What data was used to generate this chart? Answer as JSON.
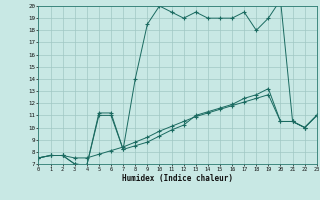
{
  "xlabel": "Humidex (Indice chaleur)",
  "bg_color": "#c8e8e4",
  "grid_color": "#a0c8c4",
  "line_color": "#1a6a60",
  "xlim": [
    0,
    23
  ],
  "ylim": [
    7,
    20
  ],
  "xticks": [
    0,
    1,
    2,
    3,
    4,
    5,
    6,
    7,
    8,
    9,
    10,
    11,
    12,
    13,
    14,
    15,
    16,
    17,
    18,
    19,
    20,
    21,
    22,
    23
  ],
  "yticks": [
    7,
    8,
    9,
    10,
    11,
    12,
    13,
    14,
    15,
    16,
    17,
    18,
    19,
    20
  ],
  "line1_x": [
    0,
    1,
    2,
    3,
    4,
    5,
    6,
    7,
    8,
    9,
    10,
    11,
    12,
    13,
    14,
    15,
    16,
    17,
    18,
    19,
    20,
    21,
    22,
    23
  ],
  "line1_y": [
    7.5,
    7.7,
    7.7,
    7.5,
    7.5,
    7.8,
    8.1,
    8.4,
    8.8,
    9.2,
    9.7,
    10.1,
    10.5,
    10.9,
    11.2,
    11.5,
    11.8,
    12.1,
    12.4,
    12.7,
    10.5,
    10.5,
    10.0,
    11.0
  ],
  "line2_x": [
    0,
    1,
    2,
    3,
    4,
    5,
    6,
    7,
    8,
    9,
    10,
    11,
    12,
    13,
    14,
    15,
    16,
    17,
    18,
    19,
    20,
    21,
    22,
    23
  ],
  "line2_y": [
    7.5,
    7.7,
    7.7,
    7.0,
    6.9,
    11.0,
    11.0,
    8.2,
    8.5,
    8.8,
    9.3,
    9.8,
    10.2,
    11.0,
    11.3,
    11.6,
    11.9,
    12.4,
    12.7,
    13.2,
    10.5,
    10.5,
    10.0,
    11.0
  ],
  "line3_x": [
    0,
    1,
    2,
    3,
    4,
    5,
    6,
    7,
    8,
    9,
    10,
    11,
    12,
    13,
    14,
    15,
    16,
    17,
    18,
    19,
    20,
    21,
    22,
    23
  ],
  "line3_y": [
    7.5,
    7.7,
    7.7,
    7.0,
    6.9,
    11.2,
    11.2,
    8.2,
    14.0,
    18.5,
    20.0,
    19.5,
    19.0,
    19.5,
    19.0,
    19.0,
    19.0,
    19.5,
    18.0,
    19.0,
    20.5,
    10.5,
    10.0,
    11.0
  ]
}
